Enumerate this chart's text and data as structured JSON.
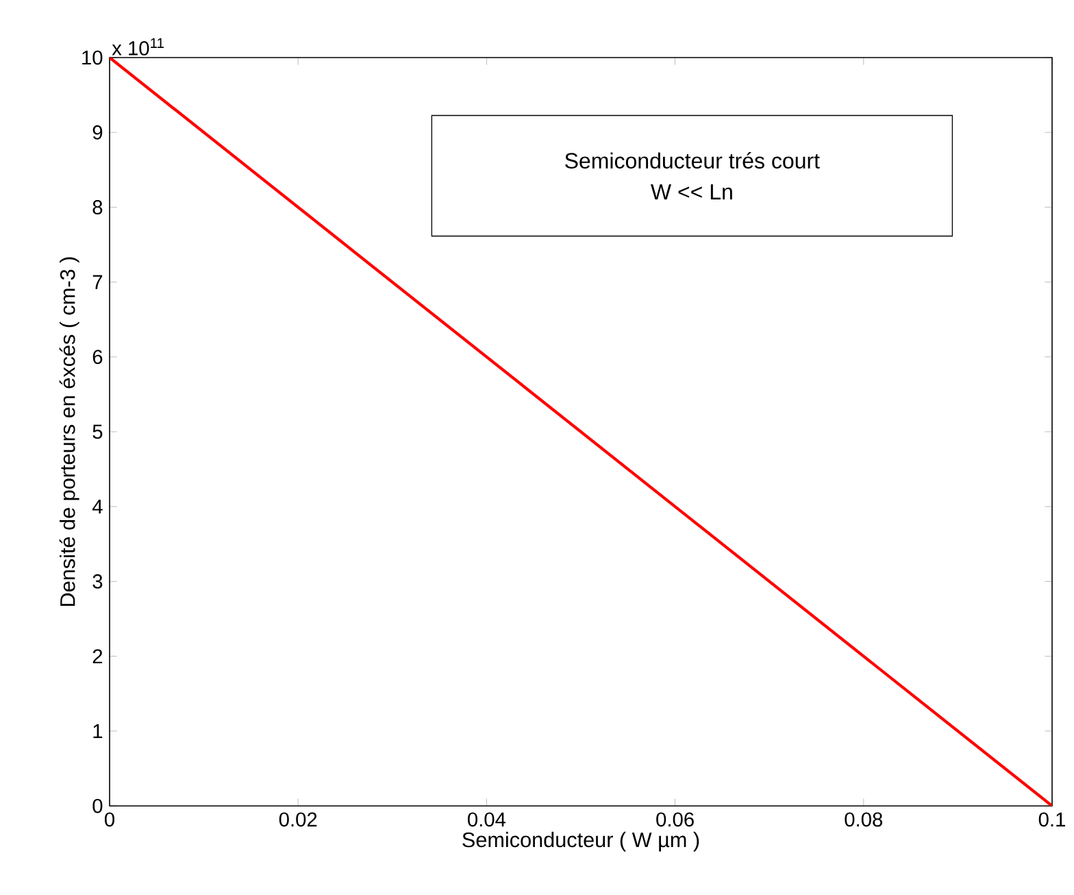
{
  "chart_data": {
    "type": "line",
    "xlabel": "Semiconducteur ( W µm  )",
    "ylabel": "Densité de porteurs en éxcés ( cm-3 )",
    "annotations": [
      "x 10$^{11}$",
      "Semiconducteur trés court",
      "W << Ln"
    ],
    "x": [
      0,
      0.1
    ],
    "series": [
      {
        "color": "#ff0000",
        "values": [
          10,
          0
        ]
      }
    ],
    "xlim": [
      0,
      0.1
    ],
    "ylim": [
      0,
      10
    ],
    "xticks": [
      0,
      0.02,
      0.04,
      0.06,
      0.08,
      0.1
    ],
    "yticks": [
      0,
      1,
      2,
      3,
      4,
      5,
      6,
      7,
      8,
      9,
      10
    ],
    "grid": false
  }
}
